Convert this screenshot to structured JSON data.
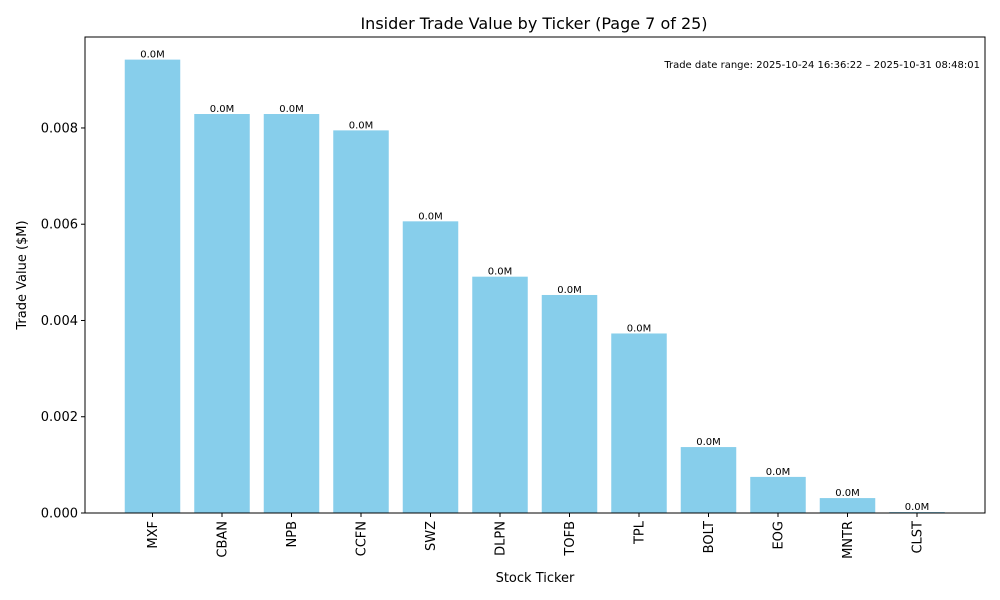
{
  "chart_data": {
    "type": "bar",
    "title": "Insider Trade Value by Ticker (Page 7 of 25)",
    "xlabel": "Stock Ticker",
    "ylabel": "Trade Value ($M)",
    "categories": [
      "MXF",
      "CBAN",
      "NPB",
      "CCFN",
      "SWZ",
      "DLPN",
      "TOFB",
      "TPL",
      "BOLT",
      "EOG",
      "MNTR",
      "CLST"
    ],
    "values": [
      0.00942,
      0.00829,
      0.00829,
      0.00795,
      0.00606,
      0.00491,
      0.00453,
      0.00373,
      0.00137,
      0.00075,
      0.00031,
      2e-05
    ],
    "data_labels": [
      "0.0M",
      "0.0M",
      "0.0M",
      "0.0M",
      "0.0M",
      "0.0M",
      "0.0M",
      "0.0M",
      "0.0M",
      "0.0M",
      "0.0M",
      "0.0M"
    ],
    "ylim": [
      0,
      0.00989
    ],
    "yticks": [
      0,
      0.002,
      0.004,
      0.006,
      0.008
    ],
    "ytick_labels": [
      "0.000",
      "0.002",
      "0.004",
      "0.006",
      "0.008"
    ],
    "bar_color": "#87ceeb",
    "grid": false,
    "annotation": "Trade date range: 2025-10-24 16:36:22 – 2025-10-31 08:48:01"
  }
}
